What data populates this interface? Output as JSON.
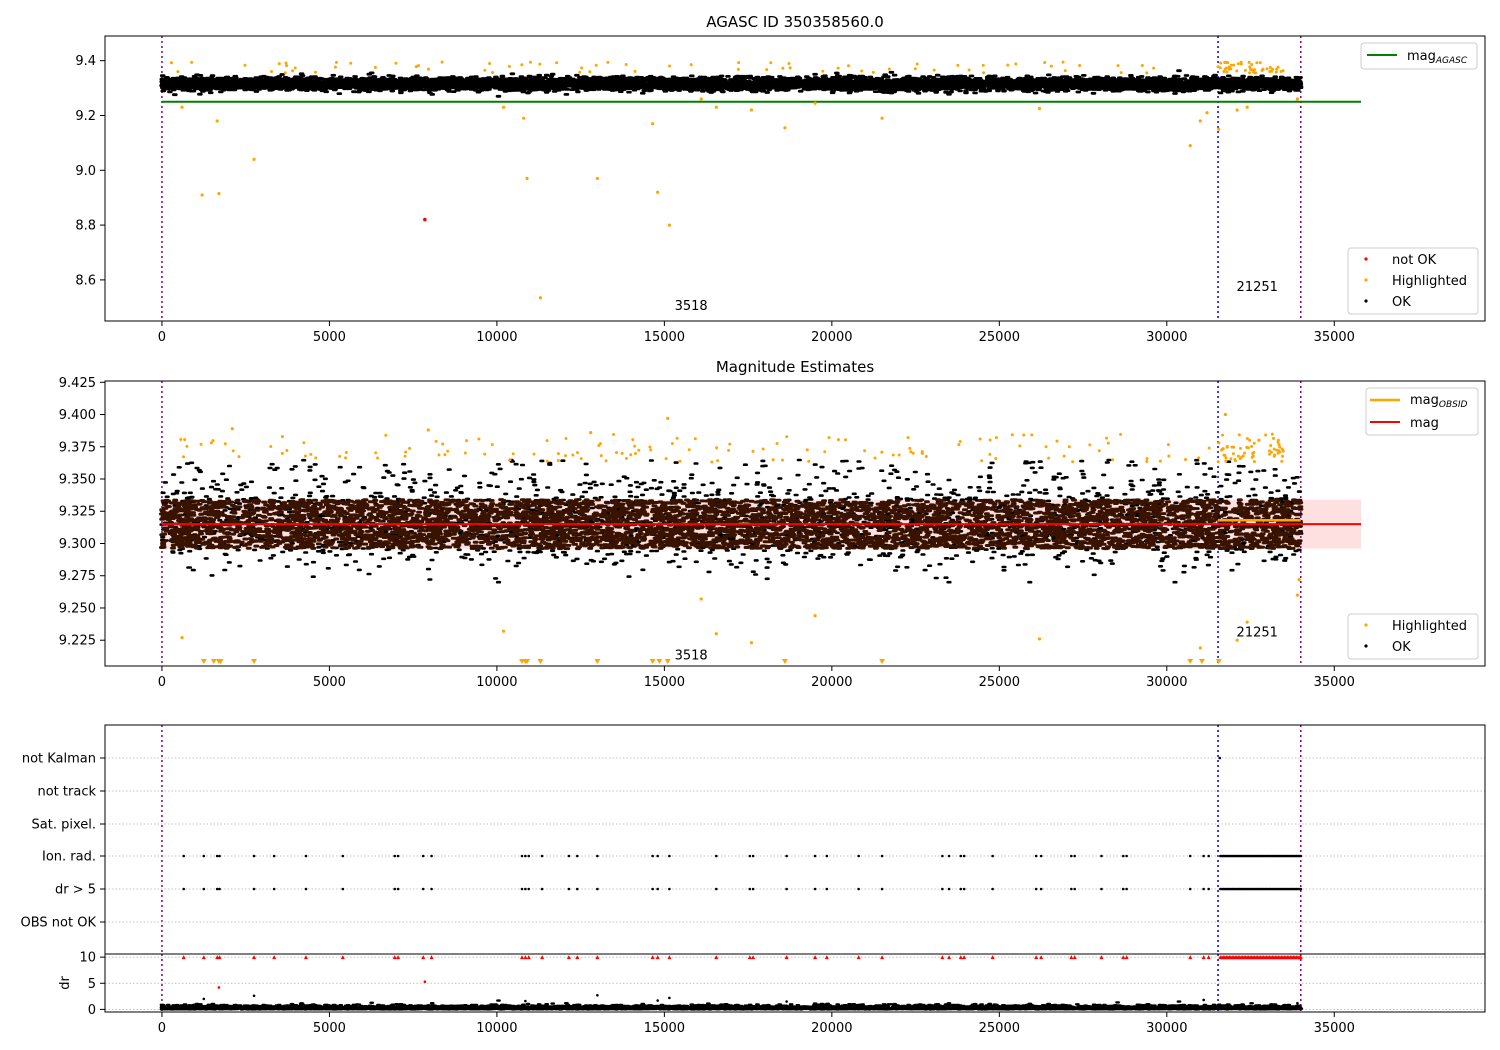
{
  "figure": {
    "colors": {
      "ok": "#000000",
      "highlighted": "#ffa500",
      "not_ok": "#ff0000",
      "agasc_line": "#008000",
      "mag_line": "#ff0000",
      "obsid_line": "#ffa500",
      "obsid_marker": "#800080",
      "obsid_marker_alt": "#0000cd",
      "band_fill": "#ffcccc",
      "dense_core": "#3a1300"
    }
  },
  "chart_data": [
    {
      "id": "top",
      "type": "scatter",
      "title": "AGASC ID 350358560.0",
      "xlim": [
        -1700,
        39500
      ],
      "ylim": [
        8.45,
        9.49
      ],
      "x_ticks": [
        0,
        5000,
        10000,
        15000,
        20000,
        25000,
        30000,
        35000
      ],
      "y_ticks": [
        8.6,
        8.8,
        9.0,
        9.2,
        9.4
      ],
      "y_tick_labels": [
        "8.6",
        "8.8",
        "9.0",
        "9.2",
        "9.4"
      ],
      "obsid_boundaries": [
        0,
        31530,
        34000
      ],
      "obsid_labels": [
        {
          "text": "3518",
          "x": 15800,
          "y": 8.49
        },
        {
          "text": "21251",
          "x": 32700,
          "y": 8.56
        }
      ],
      "agasc_mag": {
        "value": 9.25,
        "x_range": [
          0,
          35800
        ]
      },
      "ok_band": {
        "x_range": [
          0,
          34000
        ],
        "center": 9.315,
        "spread": 0.025,
        "outlier_max": 9.375,
        "outlier_min": 9.27
      },
      "highlighted_points": [
        [
          600,
          9.23
        ],
        [
          1200,
          8.91
        ],
        [
          1650,
          9.18
        ],
        [
          1700,
          8.915
        ],
        [
          2750,
          9.04
        ],
        [
          10200,
          9.23
        ],
        [
          10800,
          9.19
        ],
        [
          10900,
          8.97
        ],
        [
          13000,
          8.97
        ],
        [
          14650,
          9.17
        ],
        [
          14800,
          8.92
        ],
        [
          15150,
          8.8
        ],
        [
          11300,
          8.535
        ],
        [
          16100,
          9.26
        ],
        [
          16550,
          9.23
        ],
        [
          17600,
          9.22
        ],
        [
          18600,
          9.155
        ],
        [
          19500,
          9.245
        ],
        [
          21500,
          9.19
        ],
        [
          26200,
          9.225
        ],
        [
          30700,
          9.09
        ],
        [
          31000,
          9.18
        ],
        [
          31200,
          9.21
        ],
        [
          31550,
          9.15
        ],
        [
          32100,
          9.22
        ],
        [
          32400,
          9.23
        ],
        [
          33900,
          9.26
        ]
      ],
      "highlighted_upper_density": [
        {
          "x": [
            0,
            31400
          ],
          "count": 70
        },
        {
          "x": [
            31500,
            33500
          ],
          "count": 45
        }
      ],
      "not_ok_points": [
        [
          7850,
          8.82
        ]
      ],
      "legends": [
        {
          "position": "upper-right",
          "entries": [
            {
              "label": "mag",
              "subscript": "AGASC",
              "kind": "line",
              "color_key": "agasc_line"
            }
          ]
        },
        {
          "position": "lower-right",
          "entries": [
            {
              "label": "not OK",
              "kind": "dot",
              "color_key": "not_ok"
            },
            {
              "label": "Highlighted",
              "kind": "dot",
              "color_key": "highlighted"
            },
            {
              "label": "OK",
              "kind": "dot",
              "color_key": "ok"
            }
          ]
        }
      ]
    },
    {
      "id": "middle",
      "type": "scatter",
      "title": "Magnitude Estimates",
      "xlim": [
        -1700,
        39500
      ],
      "ylim": [
        9.205,
        9.426
      ],
      "x_ticks": [
        0,
        5000,
        10000,
        15000,
        20000,
        25000,
        30000,
        35000
      ],
      "y_ticks": [
        9.225,
        9.25,
        9.275,
        9.3,
        9.325,
        9.35,
        9.375,
        9.4,
        9.425
      ],
      "y_tick_labels": [
        "9.225",
        "9.250",
        "9.275",
        "9.300",
        "9.325",
        "9.350",
        "9.375",
        "9.400",
        "9.425"
      ],
      "obsid_boundaries": [
        0,
        31530,
        34000
      ],
      "obsid_labels": [
        {
          "text": "3518",
          "x": 15800,
          "y": 9.21
        },
        {
          "text": "21251",
          "x": 32700,
          "y": 9.228
        }
      ],
      "mag": {
        "value": 9.315,
        "band": [
          9.296,
          9.334
        ],
        "x_range": [
          0,
          35800
        ]
      },
      "mag_obsid": [
        {
          "x_range": [
            31530,
            34000
          ],
          "value": 9.318
        }
      ],
      "ok_band": {
        "x_range": [
          0,
          34000
        ],
        "center": 9.314,
        "spread": 0.02,
        "core_band": [
          9.296,
          9.334
        ],
        "spike_top": 9.365,
        "spike_bottom": 9.27
      },
      "highlighted_points": [
        [
          600,
          9.227
        ],
        [
          10200,
          9.232
        ],
        [
          16100,
          9.257
        ],
        [
          16550,
          9.23
        ],
        [
          17600,
          9.223
        ],
        [
          19500,
          9.244
        ],
        [
          26200,
          9.226
        ],
        [
          31000,
          9.219
        ],
        [
          32100,
          9.225
        ],
        [
          32400,
          9.239
        ],
        [
          33900,
          9.26
        ],
        [
          33950,
          9.272
        ],
        [
          15100,
          9.397
        ],
        [
          2100,
          9.389
        ],
        [
          7950,
          9.388
        ],
        [
          12800,
          9.386
        ],
        [
          31750,
          9.4
        ],
        [
          32750,
          9.38
        ],
        [
          22700,
          9.37
        ]
      ],
      "highlighted_upper_density": [
        {
          "x": [
            0,
            31400
          ],
          "count": 130
        },
        {
          "x": [
            31500,
            33500
          ],
          "count": 60
        }
      ],
      "clipped_markers_x": [
        1250,
        1550,
        1700,
        1750,
        2750,
        10750,
        10850,
        10900,
        11300,
        13000,
        14650,
        14850,
        15100,
        18600,
        21500,
        30700,
        31050,
        31550
      ],
      "legends": [
        {
          "position": "upper-right",
          "entries": [
            {
              "label": "mag",
              "subscript": "OBSID",
              "kind": "line",
              "color_key": "obsid_line"
            },
            {
              "label": "mag",
              "kind": "line",
              "color_key": "mag_line"
            }
          ]
        },
        {
          "position": "lower-right",
          "entries": [
            {
              "label": "Highlighted",
              "kind": "dot",
              "color_key": "highlighted"
            },
            {
              "label": "OK",
              "kind": "dot",
              "color_key": "ok"
            }
          ]
        }
      ]
    },
    {
      "id": "flags",
      "type": "scatter",
      "xlim": [
        -1700,
        39500
      ],
      "categories": [
        "not Kalman",
        "not track",
        "Sat. pixel.",
        "Ion. rad.",
        "dr > 5",
        "OBS not OK"
      ],
      "flag_events_x": [
        650,
        1250,
        1650,
        1720,
        2750,
        3350,
        4300,
        5400,
        6950,
        7050,
        7800,
        8050,
        10750,
        10850,
        10950,
        11350,
        12150,
        12400,
        13000,
        14650,
        14800,
        15150,
        16550,
        17550,
        17650,
        18650,
        19500,
        19850,
        20800,
        21500,
        23300,
        23500,
        23850,
        23950,
        24800,
        26100,
        26250,
        27150,
        27250,
        28050,
        28700,
        28800,
        30700,
        31100,
        31250
      ],
      "flag_dense_range": [
        31600,
        34000
      ],
      "flag_dense_count": 55,
      "not_kalman_x": [
        31580
      ]
    },
    {
      "id": "dr",
      "type": "scatter",
      "ylabel": "dr",
      "xlim": [
        -1700,
        39500
      ],
      "ylim": [
        -0.5,
        10.6
      ],
      "x_ticks": [
        0,
        5000,
        10000,
        15000,
        20000,
        25000,
        30000,
        35000
      ],
      "y_ticks": [
        0,
        5,
        10
      ],
      "y_tick_labels": [
        "0",
        "5",
        "10"
      ],
      "clip_value": 10,
      "ok_noise_max": 1.0,
      "sparse_black_points": [
        [
          1250,
          2.0
        ],
        [
          2750,
          2.6
        ],
        [
          10850,
          1.6
        ],
        [
          13000,
          2.7
        ],
        [
          14800,
          1.7
        ],
        [
          15150,
          2.2
        ],
        [
          18650,
          1.5
        ],
        [
          31100,
          1.8
        ],
        [
          33900,
          1.2
        ]
      ],
      "red_points": [
        [
          1700,
          4.2
        ],
        [
          7850,
          5.3
        ]
      ]
    }
  ]
}
